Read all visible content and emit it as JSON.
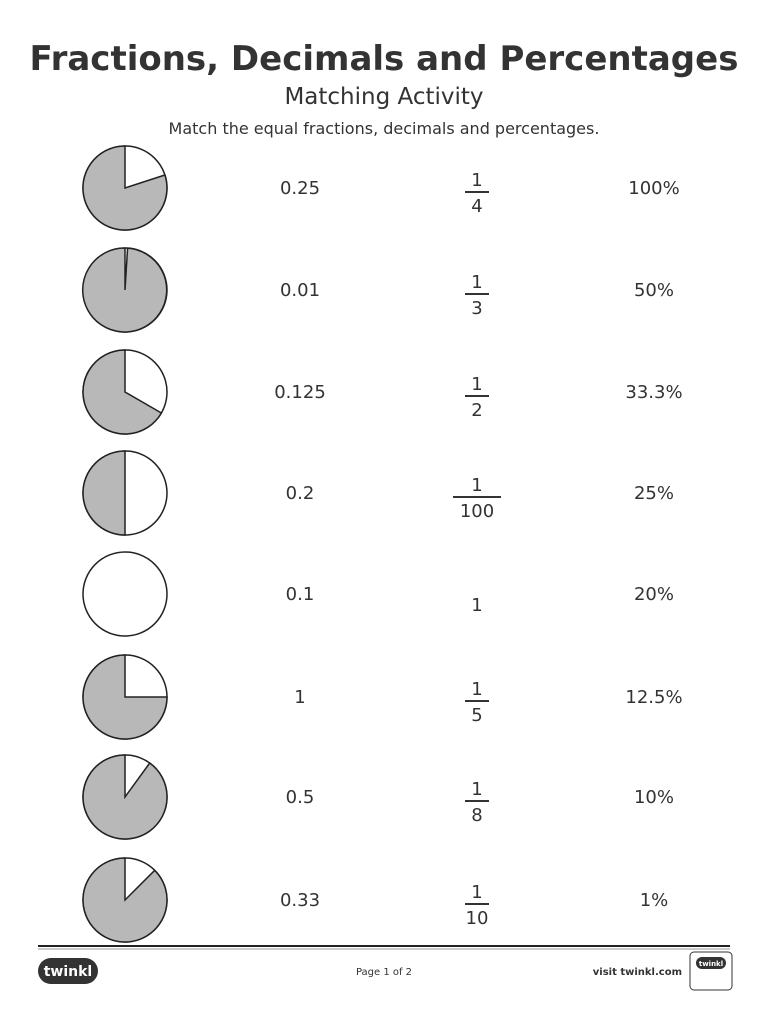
{
  "header": {
    "title": "Fractions, Decimals and Percentages",
    "subtitle": "Matching Activity",
    "instruction": "Match the equal fractions, decimals and percentages."
  },
  "decimals": [
    "0.25",
    "0.01",
    "0.125",
    "0.2",
    "0.1",
    "1",
    "0.5",
    "0.33"
  ],
  "fractions": [
    {
      "numerator": "1",
      "denominator": "4"
    },
    {
      "numerator": "1",
      "denominator": "3"
    },
    {
      "numerator": "1",
      "denominator": "2"
    },
    {
      "numerator": "1",
      "denominator": "100"
    },
    {
      "whole": "1"
    },
    {
      "numerator": "1",
      "denominator": "5"
    },
    {
      "numerator": "1",
      "denominator": "8"
    },
    {
      "numerator": "1",
      "denominator": "10"
    }
  ],
  "percentages": [
    "100%",
    "50%",
    "33.3%",
    "25%",
    "20%",
    "12.5%",
    "10%",
    "1%"
  ],
  "footer": {
    "logo": "twinkl",
    "page": "Page 1 of 2",
    "link": "visit twinkl.com",
    "badge": "twinkl"
  }
}
